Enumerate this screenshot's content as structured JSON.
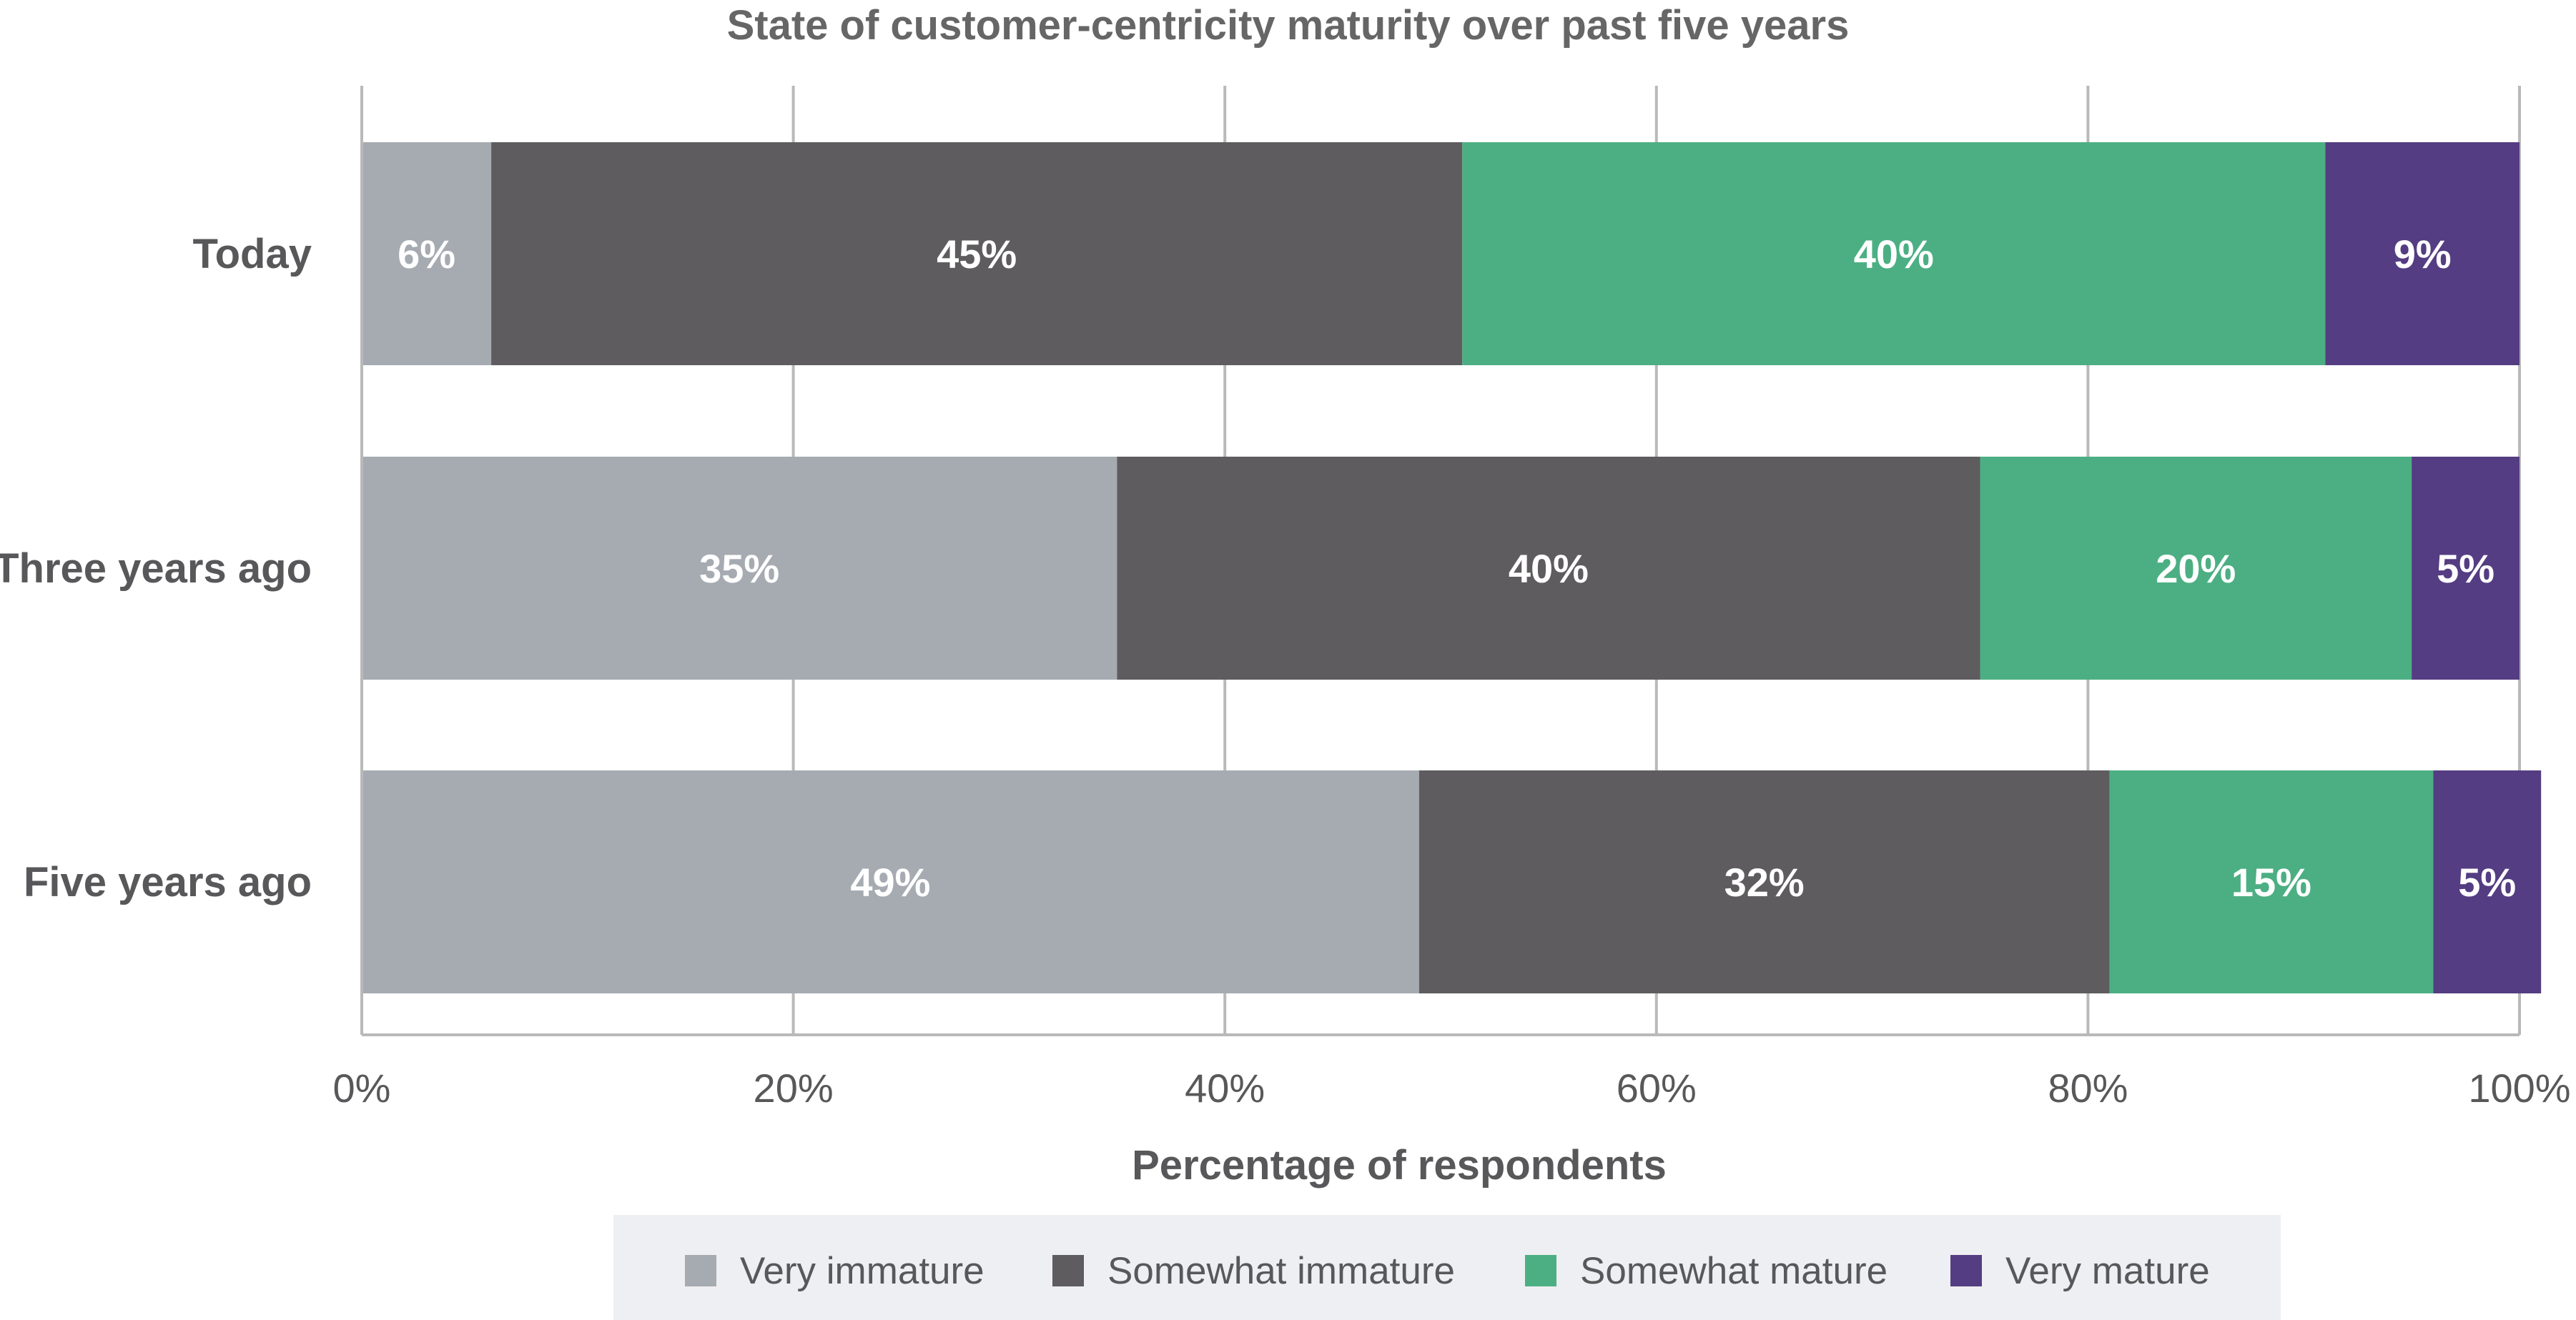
{
  "chart_data": {
    "type": "bar",
    "orientation": "horizontal",
    "stacked": true,
    "title": "State of customer-centricity maturity over past five years",
    "xlabel": "Percentage of respondents",
    "ylabel": "",
    "xlim": [
      0,
      100
    ],
    "x_ticks": [
      0,
      20,
      40,
      60,
      80,
      100
    ],
    "x_tick_labels": [
      "0%",
      "20%",
      "40%",
      "60%",
      "80%",
      "100%"
    ],
    "grid": true,
    "legend_position": "bottom",
    "categories": [
      "Today",
      "Three years ago",
      "Five years ago"
    ],
    "series": [
      {
        "name": "Very immature",
        "color": "#a6abb2",
        "values": [
          6,
          35,
          49
        ],
        "labels": [
          "6%",
          "35%",
          "49%"
        ]
      },
      {
        "name": "Somewhat immature",
        "color": "#5e5c5f",
        "values": [
          45,
          40,
          32
        ],
        "labels": [
          "45%",
          "40%",
          "32%"
        ]
      },
      {
        "name": "Somewhat mature",
        "color": "#4caf83",
        "values": [
          40,
          20,
          15
        ],
        "labels": [
          "40%",
          "20%",
          "15%"
        ]
      },
      {
        "name": "Very mature",
        "color": "#543d82",
        "values": [
          9,
          5,
          5
        ],
        "labels": [
          "9%",
          "5%",
          "5%"
        ]
      }
    ]
  },
  "colors": {
    "title": "#666666",
    "text": "#58585a",
    "grid": "#b9b9b9",
    "axis": "#b9b9b9",
    "legend_background": "#eeeff2",
    "label_text": "#ffffff"
  }
}
